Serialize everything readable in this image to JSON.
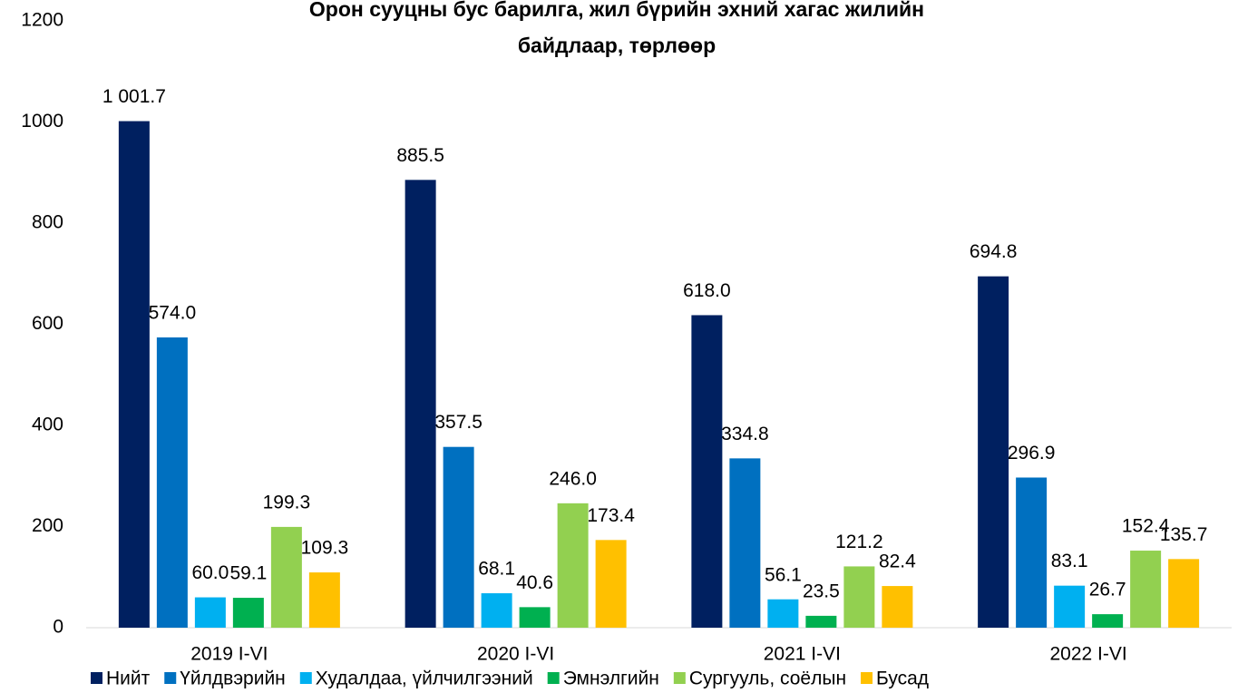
{
  "chart_data": {
    "type": "bar",
    "title": "Орон сууцны бус барилга, жил бүрийн эхний хагас жилийн байдлаар, төрлөөр",
    "categories": [
      "2019 I-VI",
      "2020 I-VI",
      "2021 I-VI",
      "2022 I-VI"
    ],
    "series": [
      {
        "name": "Нийт",
        "color": "#002060",
        "values": [
          1001.7,
          885.5,
          618.0,
          694.8
        ],
        "value_labels": [
          "1 001.7",
          "885.5",
          "618.0",
          "694.8"
        ]
      },
      {
        "name": "Үйлдвэрийн",
        "color": "#0070c0",
        "values": [
          574.0,
          357.5,
          334.8,
          296.9
        ],
        "value_labels": [
          "574.0",
          "357.5",
          "334.8",
          "296.9"
        ]
      },
      {
        "name": "Худалдаа, үйлчилгээний",
        "color": "#00b0f0",
        "values": [
          60.0,
          68.1,
          56.1,
          83.1
        ],
        "value_labels": [
          "60.0",
          "68.1",
          "56.1",
          "83.1"
        ]
      },
      {
        "name": "Эмнэлгийн",
        "color": "#00b050",
        "values": [
          59.1,
          40.6,
          23.5,
          26.7
        ],
        "value_labels": [
          "59.1",
          "40.6",
          "23.5",
          "26.7"
        ]
      },
      {
        "name": "Сургууль, соёлын",
        "color": "#92d050",
        "values": [
          199.3,
          246.0,
          121.2,
          152.4
        ],
        "value_labels": [
          "199.3",
          "246.0",
          "121.2",
          "152.4"
        ]
      },
      {
        "name": "Бусад",
        "color": "#ffc000",
        "values": [
          109.3,
          173.4,
          82.4,
          135.7
        ],
        "value_labels": [
          "109.3",
          "173.4",
          "82.4",
          "135.7"
        ]
      }
    ],
    "ylim": [
      0,
      1200
    ],
    "yticks": [
      0,
      200,
      400,
      600,
      800,
      1000,
      1200
    ],
    "grid": false,
    "legend": "bottom"
  }
}
